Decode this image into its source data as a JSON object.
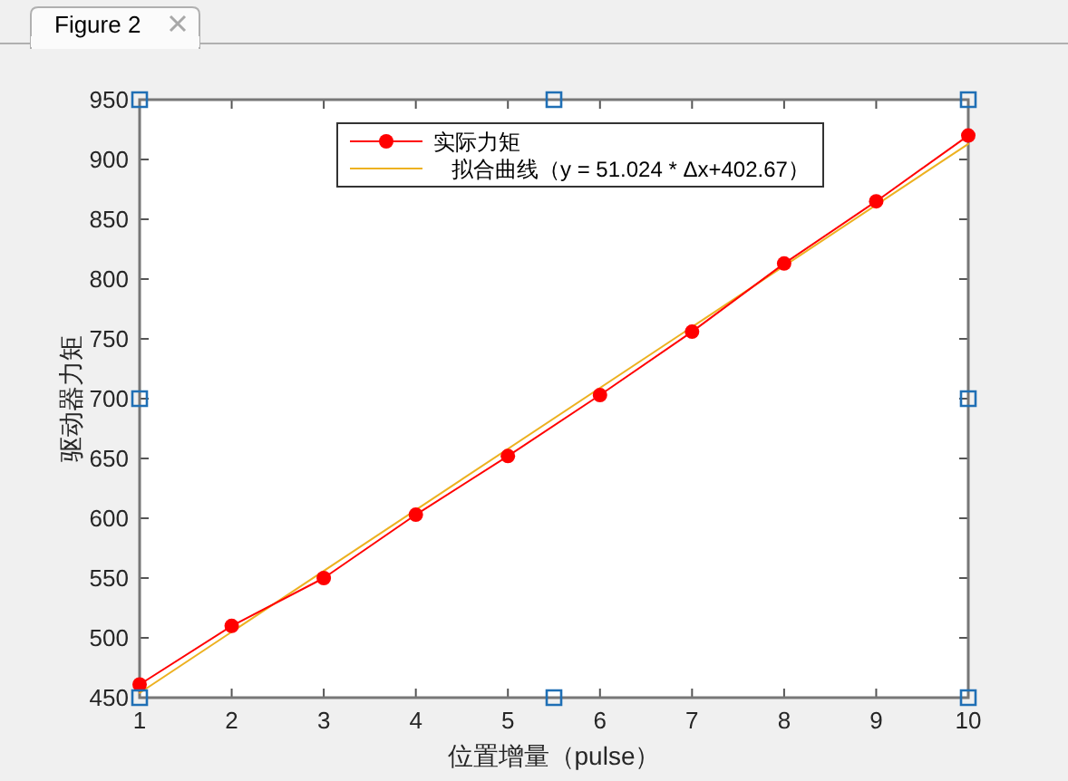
{
  "chart_data": {
    "type": "line",
    "xlabel": "位置增量（pulse）",
    "ylabel": "驱动器力矩",
    "annotations": [
      "Figure 2"
    ],
    "x": [
      1,
      2,
      3,
      4,
      5,
      6,
      7,
      8,
      9,
      10
    ],
    "xlim": [
      1,
      10
    ],
    "xticks": [
      1,
      2,
      3,
      4,
      5,
      6,
      7,
      8,
      9,
      10
    ],
    "ylim": [
      450,
      950
    ],
    "yticks": [
      450,
      500,
      550,
      600,
      650,
      700,
      750,
      800,
      850,
      900,
      950
    ],
    "grid": false,
    "legend": "top",
    "series": [
      {
        "name": "实际力矩",
        "color": "#ff0000",
        "marker": "circle",
        "line_style": "solid",
        "values": [
          461,
          510,
          550,
          603,
          652,
          703,
          756,
          813,
          865,
          920
        ]
      },
      {
        "name": "   拟合曲线（y = 51.024 * Δx+402.67）",
        "color": "#edb120",
        "marker": "none",
        "line_style": "solid",
        "x": [
          1,
          10
        ],
        "values": [
          454,
          913
        ]
      }
    ]
  }
}
